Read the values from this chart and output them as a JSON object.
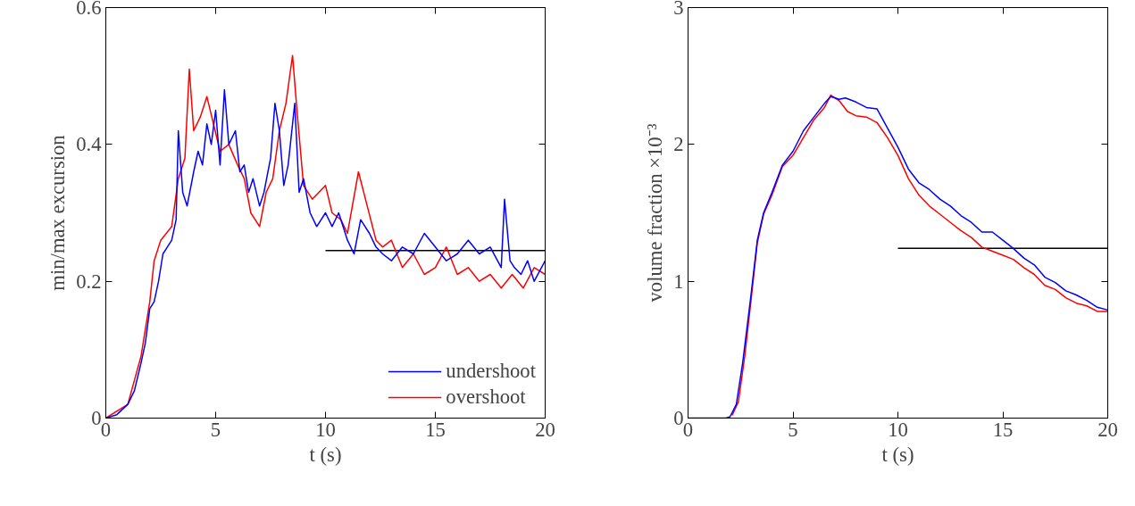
{
  "chart_data": [
    {
      "type": "line",
      "xlabel": "t (s)",
      "ylabel": "min/max excursion",
      "xlim": [
        0,
        20
      ],
      "ylim": [
        0,
        0.6
      ],
      "xticks": [
        0,
        5,
        10,
        15,
        20
      ],
      "yticks": [
        0,
        0.2,
        0.4,
        0.6
      ],
      "grid": false,
      "legend": "bottom right",
      "series": [
        {
          "name": "undershoot",
          "color": "#0000ff",
          "x": [
            0,
            0.5,
            1,
            1.3,
            1.6,
            1.8,
            2,
            2.2,
            2.4,
            2.6,
            2.8,
            3,
            3.2,
            3.3,
            3.5,
            3.7,
            4,
            4.2,
            4.4,
            4.6,
            4.8,
            5,
            5.2,
            5.4,
            5.6,
            5.9,
            6.1,
            6.3,
            6.5,
            6.7,
            7,
            7.2,
            7.5,
            7.7,
            7.9,
            8.1,
            8.3,
            8.6,
            8.8,
            9,
            9.3,
            9.6,
            10,
            10.3,
            10.6,
            11,
            11.3,
            11.6,
            12,
            12.3,
            12.6,
            13,
            13.5,
            14,
            14.5,
            15,
            15.5,
            16,
            16.5,
            17,
            17.5,
            18,
            18.15,
            18.4,
            18.6,
            18.9,
            19.2,
            19.5,
            20
          ],
          "values": [
            0,
            0.005,
            0.02,
            0.04,
            0.08,
            0.11,
            0.16,
            0.17,
            0.2,
            0.24,
            0.25,
            0.26,
            0.29,
            0.42,
            0.33,
            0.31,
            0.36,
            0.39,
            0.37,
            0.43,
            0.4,
            0.45,
            0.37,
            0.48,
            0.4,
            0.42,
            0.36,
            0.37,
            0.33,
            0.35,
            0.31,
            0.33,
            0.38,
            0.46,
            0.42,
            0.34,
            0.37,
            0.46,
            0.33,
            0.35,
            0.3,
            0.28,
            0.3,
            0.28,
            0.3,
            0.26,
            0.24,
            0.29,
            0.27,
            0.25,
            0.24,
            0.23,
            0.25,
            0.24,
            0.27,
            0.25,
            0.23,
            0.24,
            0.26,
            0.24,
            0.25,
            0.22,
            0.32,
            0.23,
            0.22,
            0.21,
            0.23,
            0.2,
            0.23
          ]
        },
        {
          "name": "overshoot",
          "color": "#ff0000",
          "x": [
            0,
            1,
            1.6,
            2,
            2.2,
            2.5,
            3,
            3.3,
            3.6,
            3.8,
            4,
            4.3,
            4.6,
            4.9,
            5.2,
            5.6,
            6,
            6.3,
            6.6,
            7,
            7.3,
            7.6,
            7.9,
            8.2,
            8.5,
            8.7,
            9,
            9.4,
            10,
            10.3,
            10.7,
            11,
            11.5,
            11.9,
            12.3,
            12.6,
            13,
            13.5,
            14,
            14.5,
            15,
            15.5,
            16,
            16.5,
            17,
            17.5,
            18,
            18.5,
            19,
            19.5,
            20
          ],
          "values": [
            0,
            0.02,
            0.09,
            0.17,
            0.23,
            0.26,
            0.28,
            0.35,
            0.38,
            0.51,
            0.42,
            0.44,
            0.47,
            0.43,
            0.39,
            0.4,
            0.37,
            0.35,
            0.3,
            0.28,
            0.33,
            0.35,
            0.42,
            0.46,
            0.53,
            0.45,
            0.34,
            0.32,
            0.34,
            0.3,
            0.29,
            0.27,
            0.36,
            0.31,
            0.26,
            0.25,
            0.26,
            0.22,
            0.24,
            0.21,
            0.22,
            0.25,
            0.21,
            0.22,
            0.2,
            0.21,
            0.19,
            0.21,
            0.19,
            0.22,
            0.21
          ]
        },
        {
          "color": "#000000",
          "x": [
            10,
            20
          ],
          "values": [
            0.245,
            0.245
          ]
        }
      ]
    },
    {
      "type": "line",
      "xlabel": "t (s)",
      "ylabel": "volume fraction ×10⁻³",
      "xlim": [
        0,
        20
      ],
      "ylim": [
        0,
        3
      ],
      "xticks": [
        0,
        5,
        10,
        15,
        20
      ],
      "yticks": [
        0,
        1,
        2,
        3
      ],
      "grid": false,
      "series": [
        {
          "color": "#0000ff",
          "x": [
            0,
            1.8,
            2,
            2.3,
            2.6,
            3,
            3.3,
            3.6,
            4,
            4.5,
            5,
            5.5,
            6,
            6.5,
            6.8,
            7.2,
            7.5,
            8,
            8.5,
            9,
            9.5,
            10,
            10.5,
            11,
            11.5,
            12,
            12.5,
            13,
            13.5,
            14,
            14.5,
            15,
            15.5,
            16,
            16.5,
            17,
            17.5,
            18,
            18.5,
            19,
            19.5,
            20
          ],
          "values": [
            0,
            0,
            0.01,
            0.1,
            0.4,
            0.9,
            1.3,
            1.5,
            1.65,
            1.85,
            1.95,
            2.1,
            2.2,
            2.3,
            2.35,
            2.33,
            2.34,
            2.31,
            2.27,
            2.26,
            2.12,
            1.98,
            1.82,
            1.72,
            1.67,
            1.6,
            1.55,
            1.48,
            1.43,
            1.36,
            1.36,
            1.3,
            1.24,
            1.17,
            1.12,
            1.03,
            0.99,
            0.93,
            0.9,
            0.86,
            0.81,
            0.79
          ]
        },
        {
          "color": "#ff0000",
          "x": [
            2.1,
            2.4,
            2.7,
            3,
            3.3,
            3.6,
            4,
            4.5,
            5,
            5.5,
            6,
            6.5,
            6.8,
            7.2,
            7.6,
            8,
            8.5,
            9,
            9.5,
            10,
            10.5,
            11,
            11.5,
            12,
            12.5,
            13,
            13.5,
            14,
            14.5,
            15,
            15.5,
            16,
            16.5,
            17,
            17.5,
            18,
            18.5,
            19,
            19.5,
            20
          ],
          "values": [
            0.02,
            0.12,
            0.45,
            0.86,
            1.28,
            1.49,
            1.63,
            1.84,
            1.92,
            2.05,
            2.18,
            2.27,
            2.36,
            2.32,
            2.24,
            2.21,
            2.2,
            2.16,
            2.05,
            1.92,
            1.75,
            1.63,
            1.55,
            1.49,
            1.43,
            1.37,
            1.32,
            1.25,
            1.22,
            1.19,
            1.16,
            1.1,
            1.05,
            0.97,
            0.94,
            0.88,
            0.84,
            0.82,
            0.78,
            0.78
          ]
        },
        {
          "color": "#000000",
          "x": [
            10,
            20
          ],
          "values": [
            1.24,
            1.24
          ]
        }
      ]
    }
  ]
}
